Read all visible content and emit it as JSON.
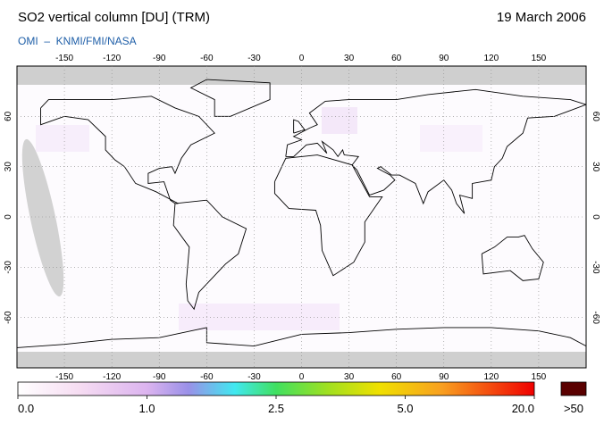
{
  "header": {
    "title": "SO2 vertical column [DU] (TRM)",
    "date": "19 March 2006",
    "subtitle": "OMI  –  KNMI/FMI/NASA"
  },
  "map": {
    "xlim": [
      -180,
      180
    ],
    "ylim": [
      -90,
      90
    ],
    "lon_ticks": [
      -150,
      -120,
      -90,
      -60,
      -30,
      0,
      30,
      60,
      90,
      120,
      150
    ],
    "lat_ticks": [
      60,
      30,
      0,
      -30,
      -60
    ]
  },
  "colorbar": {
    "labels": [
      {
        "value": 0,
        "label": "0.0"
      },
      {
        "value": 1,
        "label": "1.0"
      },
      {
        "value": 2.5,
        "label": "2.5"
      },
      {
        "value": 5,
        "label": "5.0"
      },
      {
        "value": 20,
        "label": "20.0"
      }
    ],
    "overflow_label": ">50"
  }
}
